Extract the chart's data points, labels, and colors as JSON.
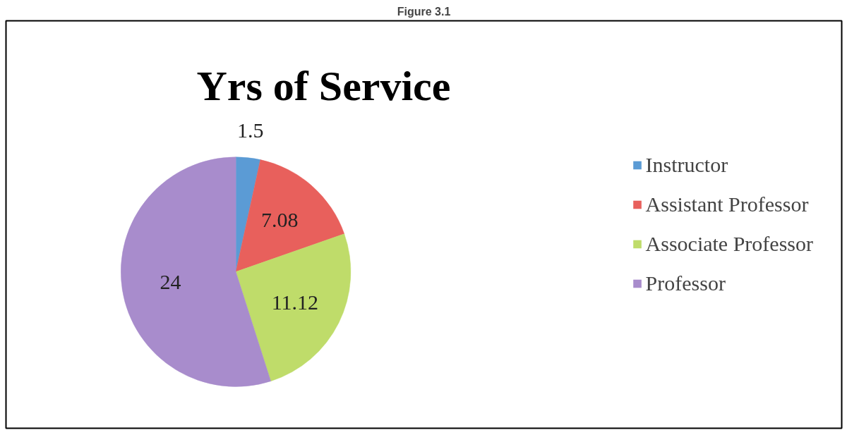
{
  "chart_data": {
    "type": "pie",
    "title": "Yrs of Service",
    "annotations": [
      "Figure 3.1"
    ],
    "categories": [
      "Instructor",
      "Assistant Professor",
      "Associate Professor",
      "Professor"
    ],
    "values": [
      1.5,
      7.08,
      11.12,
      24
    ],
    "colors": [
      "#5b9bd5",
      "#e8605c",
      "#bfdc6a",
      "#a88ccc"
    ],
    "data_labels": true,
    "legend": "right"
  }
}
